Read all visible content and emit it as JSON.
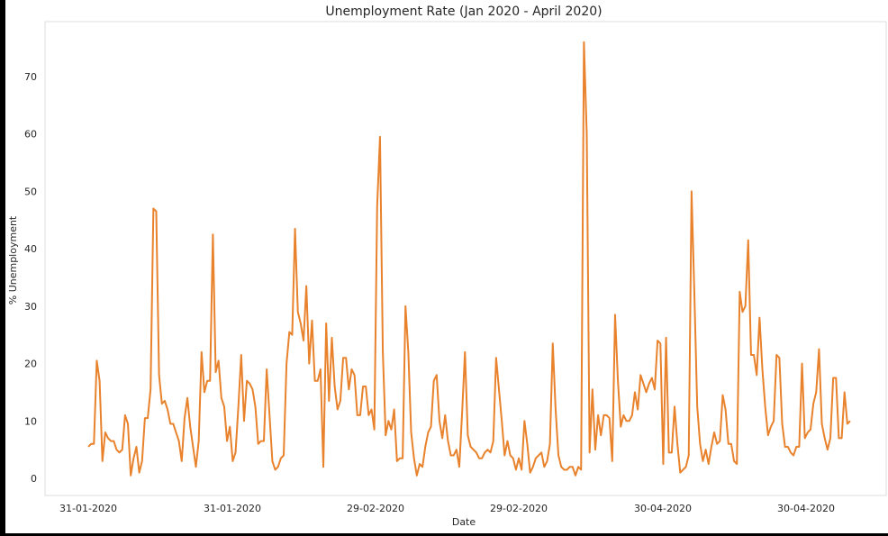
{
  "chart_data": {
    "type": "line",
    "title": "Unemployment Rate (Jan 2020 - April 2020)",
    "xlabel": "Date",
    "ylabel": "% Unemployment",
    "ylim": [
      -2,
      80
    ],
    "yticks": [
      0,
      10,
      20,
      30,
      40,
      50,
      60,
      70
    ],
    "xtick_labels": [
      "31-01-2020",
      "31-01-2020",
      "29-02-2020",
      "29-02-2020",
      "30-04-2020",
      "30-04-2020"
    ],
    "grid": false,
    "legend": "none",
    "colors": {
      "line": "#e8822c",
      "frame": "#dddddd",
      "background": "#ffffff"
    },
    "series": [
      {
        "values": [
          5.5,
          6,
          6,
          20.5,
          17,
          3,
          8,
          7,
          6.5,
          6.5,
          5,
          4.5,
          5,
          11,
          9.5,
          0.5,
          3.5,
          5.5,
          1,
          3,
          10.5,
          10.5,
          15.5,
          47,
          46.5,
          18,
          13,
          13.5,
          12,
          9.5,
          9.5,
          8,
          6.5,
          3,
          10.5,
          14,
          9,
          5.5,
          2,
          6.5,
          22,
          15,
          17,
          17,
          42.5,
          18.5,
          20.5,
          14,
          12.5,
          6.5,
          9,
          3,
          4.5,
          12.5,
          21.5,
          10,
          17,
          16.5,
          15.5,
          12.5,
          6,
          6.5,
          6.5,
          19,
          11,
          3,
          1.5,
          2,
          3.5,
          4,
          20,
          25.5,
          25,
          43.5,
          29,
          27,
          24,
          33.5,
          20,
          27.5,
          17,
          17,
          19,
          2,
          27,
          13.5,
          24.5,
          16,
          12,
          13.5,
          21,
          21,
          15.5,
          19,
          18,
          11,
          11,
          16,
          16,
          11,
          12,
          8.5,
          47.5,
          59.5,
          22,
          7.5,
          10,
          8.5,
          12,
          3,
          3.5,
          3.5,
          30,
          22,
          8,
          3.5,
          0.5,
          2.5,
          2,
          5.5,
          8,
          9,
          17,
          18,
          10,
          7,
          11,
          6.5,
          4,
          4,
          5,
          2,
          11.5,
          22,
          7.5,
          5.5,
          5,
          4.5,
          3.5,
          3.5,
          4.5,
          5,
          4.5,
          6.5,
          21,
          15.5,
          10,
          4,
          6.5,
          4,
          3.5,
          1.5,
          3.5,
          1.5,
          10,
          6,
          1,
          2,
          3.5,
          4,
          4.5,
          2,
          3,
          6,
          23.5,
          12,
          4,
          2,
          1.5,
          1.5,
          2,
          2,
          0.5,
          2,
          1.5,
          76,
          60,
          4.5,
          15.5,
          5,
          11,
          7.5,
          11,
          11,
          10.5,
          3,
          28.5,
          17,
          9,
          11,
          10,
          10,
          11,
          15,
          12,
          18,
          16.5,
          15,
          16.5,
          17.5,
          15.5,
          24,
          23.5,
          2.5,
          24.5,
          4.5,
          4.5,
          12.5,
          6,
          1,
          1.5,
          2,
          4,
          50,
          32,
          12.5,
          6,
          3,
          5,
          2.5,
          5.5,
          8,
          6,
          6.5,
          14.5,
          12,
          6,
          6,
          3,
          2.5,
          32.5,
          29,
          30,
          41.5,
          21.5,
          21.5,
          18,
          28,
          19,
          12.5,
          7.5,
          9,
          10,
          21.5,
          21,
          9.5,
          5.5,
          5.5,
          4.5,
          4,
          5.5,
          5.5,
          20,
          7,
          8,
          8.5,
          13,
          15,
          22.5,
          9.5,
          7,
          5,
          7,
          17.5,
          17.5,
          7,
          7,
          15,
          9.5,
          10
        ]
      }
    ]
  }
}
